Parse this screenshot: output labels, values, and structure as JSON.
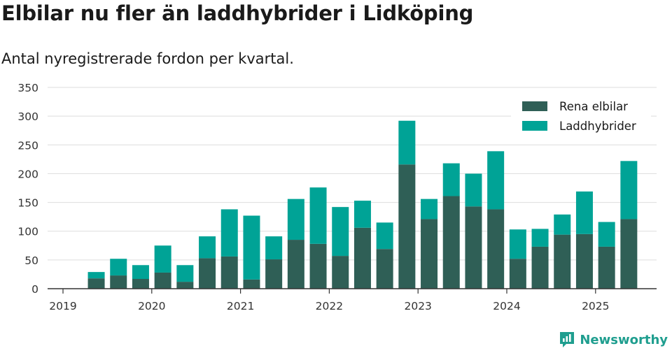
{
  "title": "Elbilar nu fler än laddhybrider i Lidköping",
  "subtitle": "Antal nyregistrerade fordon per kvartal.",
  "brand": {
    "name": "Newsworthy",
    "icon": "newsworthy-logo-icon",
    "color": "#1f9e8f"
  },
  "colors": {
    "elbilar": "#2f5f56",
    "laddhybrider": "#00a396",
    "grid": "#dddddd",
    "axis": "#333333"
  },
  "chart_data": {
    "type": "bar",
    "stacked": true,
    "x_axis": "time",
    "x": [
      "2019Q2",
      "2019Q3",
      "2019Q4",
      "2020Q1",
      "2020Q2",
      "2020Q3",
      "2020Q4",
      "2021Q1",
      "2021Q2",
      "2021Q3",
      "2021Q4",
      "2022Q1",
      "2022Q2",
      "2022Q3",
      "2022Q4",
      "2023Q1",
      "2023Q2",
      "2023Q3",
      "2023Q4",
      "2024Q1",
      "2024Q2",
      "2024Q3",
      "2024Q4",
      "2025Q1",
      "2025Q2"
    ],
    "xticks": [
      "2019",
      "2020",
      "2021",
      "2022",
      "2023",
      "2024",
      "2025"
    ],
    "series": [
      {
        "name": "Rena elbilar",
        "values": [
          18,
          23,
          17,
          28,
          12,
          53,
          56,
          16,
          51,
          85,
          78,
          57,
          106,
          69,
          216,
          121,
          161,
          143,
          138,
          52,
          73,
          94,
          95,
          73,
          121
        ]
      },
      {
        "name": "Laddhybrider",
        "values": [
          11,
          29,
          24,
          47,
          29,
          38,
          82,
          111,
          40,
          71,
          98,
          85,
          47,
          46,
          76,
          35,
          57,
          57,
          101,
          51,
          31,
          35,
          74,
          43,
          101
        ]
      }
    ],
    "ylim": [
      0,
      350
    ],
    "yticks": [
      0,
      50,
      100,
      150,
      200,
      250,
      300,
      350
    ],
    "grid": true,
    "legend": "top-right"
  }
}
